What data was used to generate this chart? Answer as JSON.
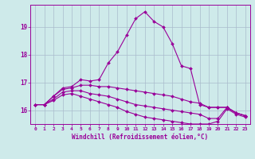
{
  "xlabel": "Windchill (Refroidissement éolien,°C)",
  "ylabel": "",
  "background_color": "#ceeaea",
  "grid_color": "#aabbcc",
  "line_color": "#990099",
  "xlim": [
    -0.5,
    23.5
  ],
  "ylim": [
    15.5,
    19.8
  ],
  "yticks": [
    16,
    17,
    18,
    19
  ],
  "xticks": [
    0,
    1,
    2,
    3,
    4,
    5,
    6,
    7,
    8,
    9,
    10,
    11,
    12,
    13,
    14,
    15,
    16,
    17,
    18,
    19,
    20,
    21,
    22,
    23
  ],
  "series": [
    {
      "x": [
        0,
        1,
        2,
        3,
        4,
        5,
        6,
        7,
        8,
        9,
        10,
        11,
        12,
        13,
        14,
        15,
        16,
        17,
        18,
        19,
        20,
        21,
        22,
        23
      ],
      "y": [
        16.2,
        16.2,
        16.5,
        16.8,
        16.85,
        17.1,
        17.05,
        17.1,
        17.7,
        18.1,
        18.7,
        19.3,
        19.55,
        19.2,
        19.0,
        18.4,
        17.6,
        17.5,
        16.2,
        16.1,
        16.1,
        16.1,
        15.9,
        15.8
      ]
    },
    {
      "x": [
        0,
        1,
        2,
        3,
        4,
        5,
        6,
        7,
        8,
        9,
        10,
        11,
        12,
        13,
        14,
        15,
        16,
        17,
        18,
        19,
        20,
        21,
        22,
        23
      ],
      "y": [
        16.2,
        16.2,
        16.5,
        16.75,
        16.8,
        16.9,
        16.9,
        16.85,
        16.85,
        16.8,
        16.75,
        16.7,
        16.65,
        16.6,
        16.55,
        16.5,
        16.4,
        16.3,
        16.25,
        16.1,
        16.1,
        16.1,
        15.9,
        15.8
      ]
    },
    {
      "x": [
        0,
        1,
        2,
        3,
        4,
        5,
        6,
        7,
        8,
        9,
        10,
        11,
        12,
        13,
        14,
        15,
        16,
        17,
        18,
        19,
        20,
        21,
        22,
        23
      ],
      "y": [
        16.2,
        16.2,
        16.4,
        16.65,
        16.7,
        16.7,
        16.6,
        16.55,
        16.5,
        16.4,
        16.3,
        16.2,
        16.15,
        16.1,
        16.05,
        16.0,
        15.95,
        15.9,
        15.85,
        15.7,
        15.7,
        16.1,
        15.9,
        15.8
      ]
    },
    {
      "x": [
        0,
        1,
        2,
        3,
        4,
        5,
        6,
        7,
        8,
        9,
        10,
        11,
        12,
        13,
        14,
        15,
        16,
        17,
        18,
        19,
        20,
        21,
        22,
        23
      ],
      "y": [
        16.2,
        16.2,
        16.35,
        16.55,
        16.6,
        16.5,
        16.4,
        16.3,
        16.2,
        16.1,
        15.95,
        15.85,
        15.75,
        15.7,
        15.65,
        15.6,
        15.55,
        15.5,
        15.5,
        15.5,
        15.6,
        16.05,
        15.85,
        15.75
      ]
    }
  ]
}
